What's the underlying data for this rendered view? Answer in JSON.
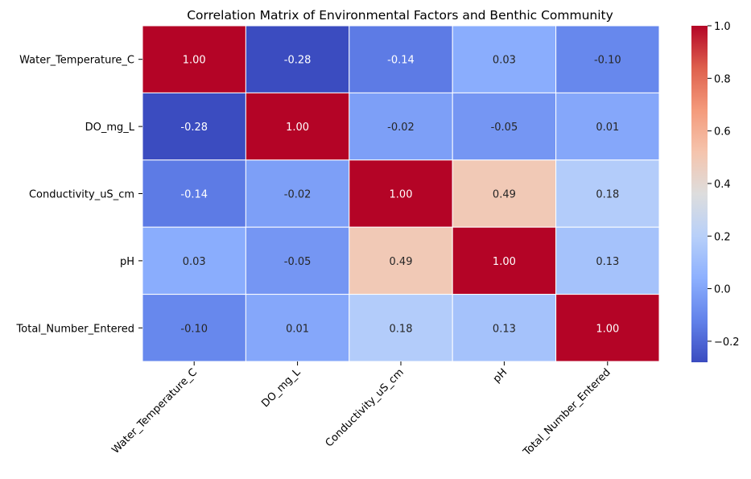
{
  "chart_data": {
    "type": "heatmap",
    "title": "Correlation Matrix of Environmental Factors and Benthic Community",
    "xlabel": "",
    "ylabel": "",
    "labels": [
      "Water_Temperature_C",
      "DO_mg_L",
      "Conductivity_uS_cm",
      "pH",
      "Total_Number_Entered"
    ],
    "matrix": [
      [
        1.0,
        -0.28,
        -0.14,
        0.03,
        -0.1
      ],
      [
        -0.28,
        1.0,
        -0.02,
        -0.05,
        0.01
      ],
      [
        -0.14,
        -0.02,
        1.0,
        0.49,
        0.18
      ],
      [
        0.03,
        -0.05,
        0.49,
        1.0,
        0.13
      ],
      [
        -0.1,
        0.01,
        0.18,
        0.13,
        1.0
      ]
    ],
    "annotation_format": "2 decimals",
    "colormap": "coolwarm",
    "colormap_colors": {
      "low": "#3b4cc0",
      "mid": "#dddddd",
      "high": "#b40426"
    },
    "vmin": -0.28,
    "vmax": 1.0,
    "colorbar_ticks": [
      1.0,
      0.8,
      0.6,
      0.4,
      0.2,
      0.0,
      -0.2
    ],
    "colorbar_tick_labels": [
      "1.0",
      "0.8",
      "0.6",
      "0.4",
      "0.2",
      "0.0",
      "−0.2"
    ],
    "cell_border_color": "#ffffff",
    "grid": false
  }
}
